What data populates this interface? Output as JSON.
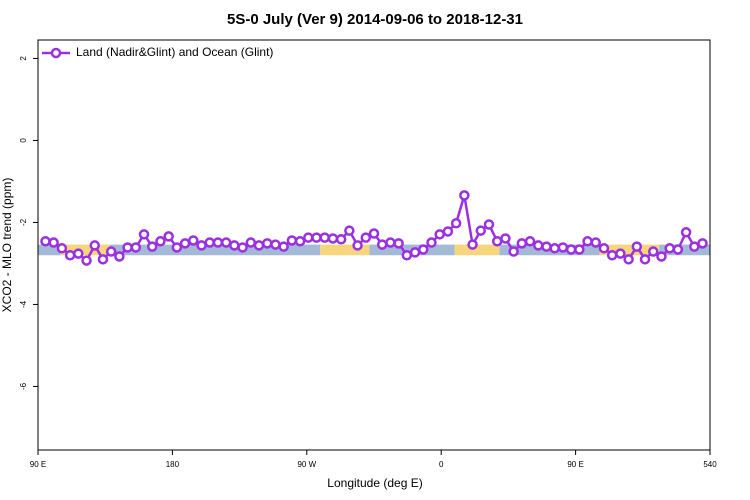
{
  "chart_data": {
    "type": "line",
    "title": "5S-0 July (Ver 9)   2014-09-06 to 2018-12-31",
    "x_label": "Longitude (deg E)",
    "y_label": "XCO2 - MLO trend (ppm)",
    "xlim": [
      90,
      540
    ],
    "ylim": [
      -7.55,
      2.45
    ],
    "xticks": [
      {
        "value": 90,
        "label": "90 E"
      },
      180,
      {
        "value": 270,
        "label": "90 W"
      },
      {
        "value": 360,
        "label": "0"
      },
      {
        "value": 450,
        "label": "90 E"
      },
      540
    ],
    "yticks": [
      2,
      0,
      -2,
      -4,
      -6
    ],
    "legend_position": "top-left",
    "surface_band_y": [
      -2.8,
      -2.54
    ],
    "surface_bands": [
      {
        "x": [
          90,
          105
        ],
        "color": "#a3b9d6"
      },
      {
        "x": [
          105,
          138
        ],
        "color": "#f7d57c"
      },
      {
        "x": [
          138,
          279
        ],
        "color": "#a3b9d6"
      },
      {
        "x": [
          279,
          312
        ],
        "color": "#f7d57c"
      },
      {
        "x": [
          312,
          369
        ],
        "color": "#a3b9d6"
      },
      {
        "x": [
          369,
          399
        ],
        "color": "#f7d57c"
      },
      {
        "x": [
          399,
          466
        ],
        "color": "#a3b9d6"
      },
      {
        "x": [
          466,
          506
        ],
        "color": "#f7d57c"
      },
      {
        "x": [
          506,
          540
        ],
        "color": "#a3b9d6"
      }
    ],
    "x": [
      95,
      100.5,
      106,
      111.5,
      117,
      122.5,
      128,
      133.5,
      139,
      144.5,
      150,
      155.5,
      161,
      166.5,
      172,
      177.5,
      183,
      188.5,
      194,
      199.5,
      205,
      210.5,
      216,
      221.5,
      227,
      232.5,
      238,
      243.5,
      249,
      254.5,
      260,
      265.5,
      271,
      276.5,
      282,
      287.5,
      293,
      298.5,
      304,
      309.5,
      315,
      320.5,
      326,
      331.5,
      337,
      342.5,
      348,
      353.5,
      359,
      364.5,
      370,
      375.5,
      381,
      386.5,
      392,
      397.5,
      403,
      408.5,
      414,
      419.5,
      425,
      430.5,
      436,
      441.5,
      447,
      452.5,
      458,
      463.5,
      469,
      474.5,
      480,
      485.5,
      491,
      496.5,
      502,
      507.5,
      513,
      518.5,
      524,
      529.5,
      535
    ],
    "series": [
      {
        "name": "Land (Nadir&Glint) and Ocean (Glint)",
        "color": "#9b30e0",
        "values": [
          -2.46,
          -2.49,
          -2.63,
          -2.8,
          -2.76,
          -2.93,
          -2.56,
          -2.9,
          -2.71,
          -2.83,
          -2.61,
          -2.61,
          -2.29,
          -2.59,
          -2.46,
          -2.34,
          -2.61,
          -2.51,
          -2.44,
          -2.56,
          -2.49,
          -2.49,
          -2.49,
          -2.56,
          -2.61,
          -2.49,
          -2.56,
          -2.51,
          -2.54,
          -2.59,
          -2.44,
          -2.46,
          -2.37,
          -2.37,
          -2.37,
          -2.39,
          -2.41,
          -2.2,
          -2.56,
          -2.37,
          -2.27,
          -2.54,
          -2.49,
          -2.51,
          -2.8,
          -2.73,
          -2.66,
          -2.49,
          -2.29,
          -2.22,
          -2.02,
          -1.34,
          -2.54,
          -2.2,
          -2.05,
          -2.46,
          -2.39,
          -2.71,
          -2.51,
          -2.46,
          -2.56,
          -2.59,
          -2.63,
          -2.61,
          -2.66,
          -2.66,
          -2.46,
          -2.49,
          -2.63,
          -2.8,
          -2.76,
          -2.9,
          -2.59,
          -2.9,
          -2.71,
          -2.83,
          -2.63,
          -2.66,
          -2.24,
          -2.59,
          -2.51
        ]
      }
    ]
  }
}
